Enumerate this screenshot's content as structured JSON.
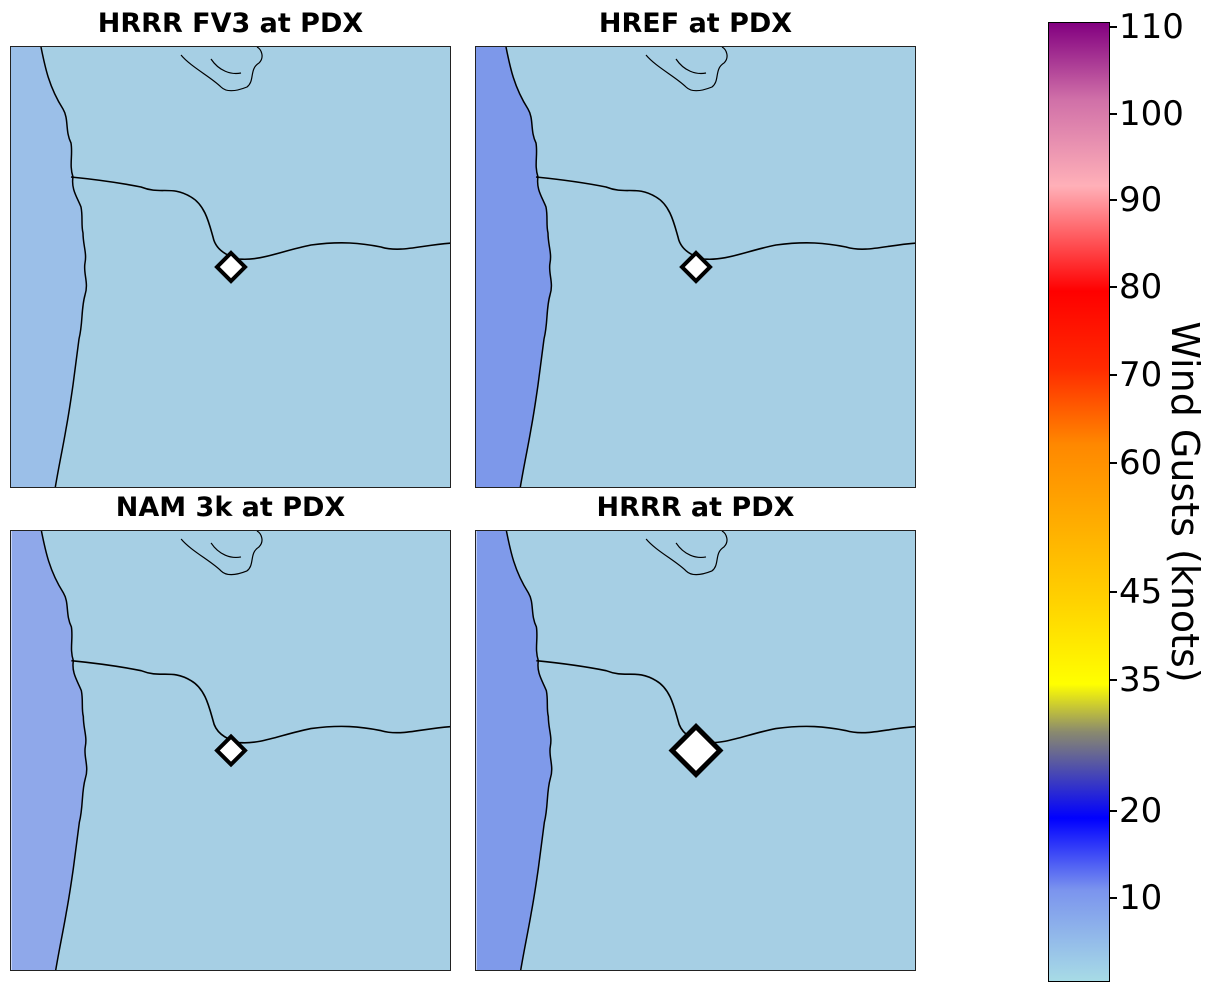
{
  "panels": [
    {
      "id": "hrrr-fv3",
      "title": "HRRR FV3 at PDX",
      "marker": "small",
      "water": "#9bbfe8"
    },
    {
      "id": "href",
      "title": "HREF at PDX",
      "marker": "small",
      "water": "#7d98ea"
    },
    {
      "id": "nam-3k",
      "title": "NAM 3k at PDX",
      "marker": "small",
      "water": "#8fa8ea"
    },
    {
      "id": "hrrr",
      "title": "HRRR at PDX",
      "marker": "large",
      "water": "#7f9aea"
    }
  ],
  "colorbar": {
    "label": "Wind Gusts (knots)",
    "ticks": [
      "110",
      "100",
      "90",
      "80",
      "70",
      "60",
      "45",
      "35",
      "20",
      "10"
    ],
    "colors": {
      "low": "#a7dbe6",
      "ten": "#7b94ee",
      "twenty": "#0000ff",
      "mid": "#8a8a6e",
      "thirtyfive": "#ffff00",
      "fortyfive": "#ffd000",
      "sixty": "#ff8800",
      "seventy": "#ff2a00",
      "eighty": "#ff0000",
      "ninety": "#ffb0b8",
      "hundred": "#d070a8",
      "top": "#820080"
    }
  },
  "map_colors": {
    "land": "#a6cfe4",
    "coast_line": "#000000",
    "marker_fill": "#ffffff",
    "marker_stroke": "#000000"
  }
}
